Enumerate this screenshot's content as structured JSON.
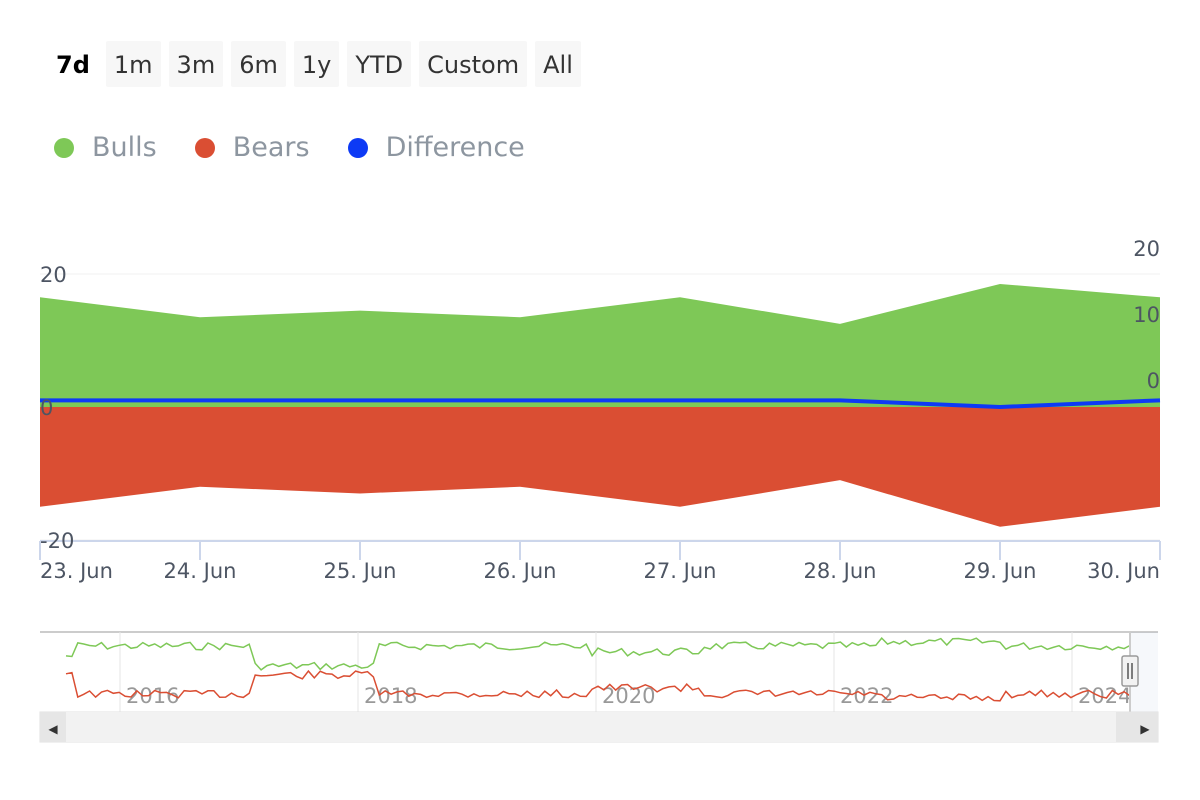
{
  "range_selector": {
    "buttons": [
      {
        "label": "7d",
        "active": true
      },
      {
        "label": "1m",
        "active": false
      },
      {
        "label": "3m",
        "active": false
      },
      {
        "label": "6m",
        "active": false
      },
      {
        "label": "1y",
        "active": false
      },
      {
        "label": "YTD",
        "active": false
      },
      {
        "label": "Custom",
        "active": false
      },
      {
        "label": "All",
        "active": false
      }
    ]
  },
  "legend": [
    {
      "label": "Bulls",
      "color": "#7ec857"
    },
    {
      "label": "Bears",
      "color": "#da4e33"
    },
    {
      "label": "Difference",
      "color": "#0d3af5"
    }
  ],
  "chart_data": {
    "type": "area",
    "title": "",
    "categories": [
      "23. Jun",
      "24. Jun",
      "25. Jun",
      "26. Jun",
      "27. Jun",
      "28. Jun",
      "29. Jun",
      "30. Jun"
    ],
    "series": [
      {
        "name": "Bulls",
        "type": "area",
        "color": "#7ec857",
        "values": [
          16.5,
          13.5,
          14.5,
          13.5,
          16.5,
          12.5,
          18.5,
          16.5
        ]
      },
      {
        "name": "Bears",
        "type": "area",
        "color": "#da4e33",
        "values": [
          -15,
          -12,
          -13,
          -12,
          -15,
          -11,
          -18,
          -15
        ]
      },
      {
        "name": "Difference",
        "type": "line",
        "color": "#0d3af5",
        "values": [
          1,
          1,
          1,
          1,
          1,
          1,
          0,
          1
        ]
      }
    ],
    "y_left": {
      "ticks": [
        "20",
        "0",
        "-20"
      ],
      "range": [
        -20,
        20
      ]
    },
    "y_right": {
      "ticks": [
        "20",
        "10",
        "0"
      ],
      "range": [
        0,
        20
      ]
    },
    "grid": true,
    "legend_position": "top-left"
  },
  "navigator": {
    "labels": [
      "2016",
      "2018",
      "2020",
      "2022",
      "2024"
    ],
    "bulls_color": "#7ec857",
    "bears_color": "#da4e33"
  },
  "scrollbar": {
    "left_arrow": "◀",
    "right_arrow": "▶"
  }
}
